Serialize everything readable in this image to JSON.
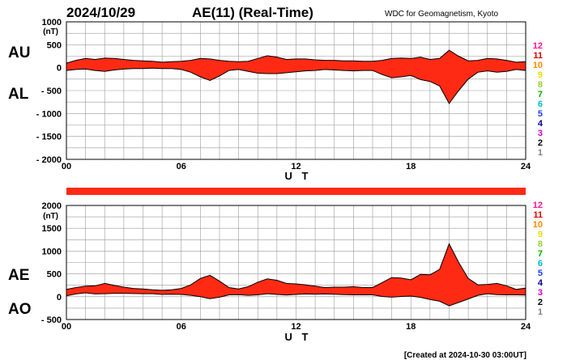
{
  "header": {
    "date": "2024/10/29",
    "title": "AE(11) (Real-Time)",
    "source": "WDC for Geomagnetism, Kyoto"
  },
  "footer": {
    "created": "[Created at 2024-10-30 03:00UT]"
  },
  "colors": {
    "fill": "#ff2a14",
    "line": "#000000",
    "grid": "#9a9a9a"
  },
  "chart_data": [
    {
      "type": "area",
      "panel": "AU/AL",
      "unit_label": "(nT)",
      "xlabel": "U T",
      "left_labels": {
        "upper": "AU",
        "lower": "AL"
      },
      "ylim": [
        -2000,
        1000
      ],
      "yticks": [
        1000,
        500,
        0,
        -500,
        -1000,
        -1500,
        -2000
      ],
      "ytick_labels": [
        "1000",
        "500",
        "0",
        "- 500",
        "- 1000",
        "- 1500",
        "- 2000"
      ],
      "xlim": [
        0,
        24
      ],
      "xticks": [
        0,
        6,
        12,
        18,
        24
      ],
      "xtick_labels": [
        "00",
        "06",
        "12",
        "18",
        "24"
      ],
      "grid": true,
      "series": [
        {
          "name": "AU",
          "x": [
            0,
            0.5,
            1,
            1.5,
            2,
            2.5,
            3,
            3.5,
            4,
            4.5,
            5,
            5.5,
            6,
            6.5,
            7,
            7.5,
            8,
            8.5,
            9,
            9.5,
            10,
            10.5,
            11,
            11.5,
            12,
            12.5,
            13,
            13.5,
            14,
            14.5,
            15,
            15.5,
            16,
            16.5,
            17,
            17.5,
            18,
            18.5,
            19,
            19.5,
            20,
            20.5,
            21,
            21.5,
            22,
            22.5,
            23,
            23.5,
            24
          ],
          "values": [
            100,
            160,
            200,
            180,
            210,
            200,
            180,
            160,
            150,
            140,
            120,
            130,
            140,
            160,
            200,
            190,
            160,
            140,
            130,
            140,
            200,
            260,
            230,
            180,
            190,
            190,
            170,
            160,
            160,
            150,
            150,
            140,
            140,
            160,
            200,
            210,
            200,
            230,
            180,
            200,
            380,
            250,
            150,
            160,
            200,
            190,
            160,
            120,
            130
          ]
        },
        {
          "name": "AL",
          "x": [
            0,
            0.5,
            1,
            1.5,
            2,
            2.5,
            3,
            3.5,
            4,
            4.5,
            5,
            5.5,
            6,
            6.5,
            7,
            7.5,
            8,
            8.5,
            9,
            9.5,
            10,
            10.5,
            11,
            11.5,
            12,
            12.5,
            13,
            13.5,
            14,
            14.5,
            15,
            15.5,
            16,
            16.5,
            17,
            17.5,
            18,
            18.5,
            19,
            19.5,
            20,
            20.5,
            21,
            21.5,
            22,
            22.5,
            23,
            23.5,
            24
          ],
          "values": [
            -60,
            -40,
            -30,
            -60,
            -80,
            -50,
            -30,
            -20,
            -20,
            -10,
            -20,
            -20,
            -40,
            -100,
            -200,
            -280,
            -180,
            -60,
            -40,
            -80,
            -120,
            -130,
            -130,
            -110,
            -90,
            -70,
            -60,
            -40,
            -50,
            -60,
            -70,
            -60,
            -60,
            -150,
            -220,
            -200,
            -170,
            -260,
            -300,
            -400,
            -780,
            -500,
            -250,
            -100,
            -70,
            -100,
            -80,
            -40,
            -60
          ]
        }
      ],
      "legend_colors": [
        "#ff0080",
        "#ff0000",
        "#ff8c00",
        "#f0e000",
        "#9acd32",
        "#00c000",
        "#00c8c8",
        "#0060ff",
        "#0000c0",
        "#c000c0",
        "#202020",
        "#707070",
        "#b0b0b0"
      ],
      "legend": {
        "labels": [
          "12",
          "11",
          "10",
          "9",
          "8",
          "7",
          "6",
          "5",
          "4",
          "3",
          "2",
          "1"
        ],
        "colors": [
          "#ff1493",
          "#e00000",
          "#ff8c00",
          "#e8e000",
          "#9acd32",
          "#00b000",
          "#00bcd4",
          "#1e40ff",
          "#000090",
          "#d000d0",
          "#000000",
          "#808080",
          "#c0c0c0"
        ]
      }
    },
    {
      "type": "area",
      "panel": "AE/AO",
      "unit_label": "(nT)",
      "xlabel": "U T",
      "left_labels": {
        "upper": "AE",
        "lower": "AO"
      },
      "ylim": [
        -500,
        2000
      ],
      "yticks": [
        2000,
        1500,
        1000,
        500,
        0,
        -500
      ],
      "ytick_labels": [
        "2000",
        "1500",
        "1000",
        "500",
        "0",
        "- 500"
      ],
      "xlim": [
        0,
        24
      ],
      "xticks": [
        0,
        6,
        12,
        18,
        24
      ],
      "xtick_labels": [
        "00",
        "06",
        "12",
        "18",
        "24"
      ],
      "grid": true,
      "series": [
        {
          "name": "AE",
          "x": [
            0,
            0.5,
            1,
            1.5,
            2,
            2.5,
            3,
            3.5,
            4,
            4.5,
            5,
            5.5,
            6,
            6.5,
            7,
            7.5,
            8,
            8.5,
            9,
            9.5,
            10,
            10.5,
            11,
            11.5,
            12,
            12.5,
            13,
            13.5,
            14,
            14.5,
            15,
            15.5,
            16,
            16.5,
            17,
            17.5,
            18,
            18.5,
            19,
            19.5,
            20,
            20.5,
            21,
            21.5,
            22,
            22.5,
            23,
            23.5,
            24
          ],
          "values": [
            160,
            200,
            230,
            240,
            290,
            250,
            210,
            180,
            170,
            150,
            140,
            150,
            180,
            260,
            400,
            470,
            340,
            200,
            170,
            220,
            320,
            390,
            360,
            290,
            280,
            260,
            230,
            200,
            210,
            210,
            220,
            200,
            200,
            310,
            420,
            410,
            370,
            490,
            480,
            600,
            1160,
            750,
            400,
            260,
            270,
            290,
            240,
            160,
            190
          ]
        },
        {
          "name": "AO",
          "x": [
            0,
            0.5,
            1,
            1.5,
            2,
            2.5,
            3,
            3.5,
            4,
            4.5,
            5,
            5.5,
            6,
            6.5,
            7,
            7.5,
            8,
            8.5,
            9,
            9.5,
            10,
            10.5,
            11,
            11.5,
            12,
            12.5,
            13,
            13.5,
            14,
            14.5,
            15,
            15.5,
            16,
            16.5,
            17,
            17.5,
            18,
            18.5,
            19,
            19.5,
            20,
            20.5,
            21,
            21.5,
            22,
            22.5,
            23,
            23.5,
            24
          ],
          "values": [
            20,
            60,
            85,
            60,
            65,
            75,
            75,
            70,
            65,
            65,
            50,
            55,
            50,
            30,
            0,
            -45,
            -10,
            40,
            45,
            30,
            40,
            65,
            50,
            35,
            50,
            60,
            55,
            60,
            55,
            45,
            40,
            40,
            40,
            5,
            -10,
            5,
            15,
            -15,
            -60,
            -100,
            -200,
            -125,
            -50,
            30,
            65,
            45,
            40,
            40,
            35
          ]
        }
      ],
      "legend": {
        "labels": [
          "12",
          "11",
          "10",
          "9",
          "8",
          "7",
          "6",
          "5",
          "4",
          "3",
          "2",
          "1"
        ],
        "colors": [
          "#ff1493",
          "#e00000",
          "#ff8c00",
          "#e8e000",
          "#9acd32",
          "#00b000",
          "#00bcd4",
          "#1e40ff",
          "#000090",
          "#d000d0",
          "#000000",
          "#808080",
          "#c0c0c0"
        ]
      }
    }
  ]
}
